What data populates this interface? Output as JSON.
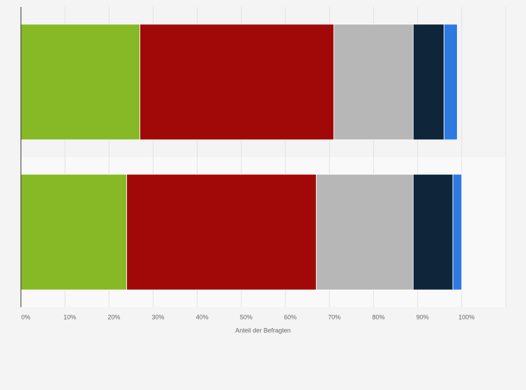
{
  "chart_data": {
    "type": "bar",
    "orientation": "horizontal",
    "stacked": true,
    "categories": [
      null,
      null
    ],
    "series": [
      {
        "color": "#86b925",
        "values": [
          27,
          24
        ]
      },
      {
        "color": "#a10909",
        "values": [
          44,
          43
        ]
      },
      {
        "color": "#b7b7b7",
        "values": [
          18,
          22
        ]
      },
      {
        "color": "#0f253a",
        "values": [
          7,
          9
        ]
      },
      {
        "color": "#2d7ae0",
        "values": [
          3,
          2
        ]
      }
    ],
    "xlabel": "Anteil der Befragten",
    "xlim": [
      0,
      110
    ],
    "xticks": [
      {
        "value": 0,
        "label": "0%"
      },
      {
        "value": 10,
        "label": "10%"
      },
      {
        "value": 20,
        "label": "20%"
      },
      {
        "value": 30,
        "label": "30%"
      },
      {
        "value": 40,
        "label": "40%"
      },
      {
        "value": 50,
        "label": "50%"
      },
      {
        "value": 60,
        "label": "60%"
      },
      {
        "value": 70,
        "label": "70%"
      },
      {
        "value": 80,
        "label": "80%"
      },
      {
        "value": 90,
        "label": "90%"
      },
      {
        "value": 100,
        "label": "100%"
      }
    ],
    "grid": true
  }
}
